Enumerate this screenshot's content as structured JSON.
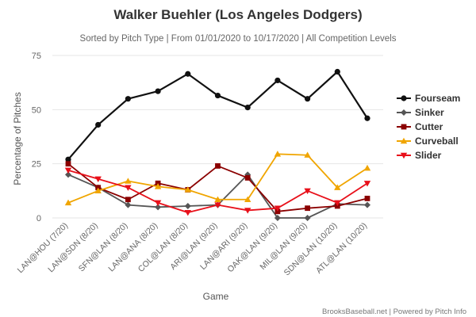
{
  "chart_data": {
    "type": "line",
    "title": "Walker Buehler (Los Angeles Dodgers)",
    "subtitle": "Sorted by Pitch Type | From 01/01/2020 to 10/17/2020 | All Competition Levels",
    "xlabel": "Game",
    "ylabel": "Percentage of Pitches",
    "ylim": [
      0,
      75
    ],
    "yticks": [
      0,
      25,
      50,
      75
    ],
    "categories": [
      "LAN@HOU (7/20)",
      "LAN@SDN (8/20)",
      "SFN@LAN (8/20)",
      "LAN@ANA (8/20)",
      "COL@LAN (8/20)",
      "ARI@LAN (9/20)",
      "LAN@ARI (9/20)",
      "OAK@LAN (9/20)",
      "MIL@LAN (9/20)",
      "SDN@LAN (10/20)",
      "ATL@LAN (10/20)"
    ],
    "series": [
      {
        "name": "Fourseam",
        "color": "#111111",
        "marker": "circle",
        "values": [
          27,
          43,
          55,
          58.5,
          66.5,
          56.5,
          51,
          63.5,
          55,
          67.5,
          46
        ]
      },
      {
        "name": "Sinker",
        "color": "#555555",
        "marker": "diamond",
        "values": [
          20,
          14,
          6,
          5,
          5.5,
          6,
          20,
          0,
          0,
          6.5,
          6
        ]
      },
      {
        "name": "Cutter",
        "color": "#8b0000",
        "marker": "square",
        "values": [
          25,
          14,
          8.5,
          16,
          13,
          24,
          18.5,
          3,
          4.5,
          5.5,
          9
        ]
      },
      {
        "name": "Curveball",
        "color": "#f0a500",
        "marker": "triangle-up",
        "values": [
          7,
          12.5,
          17,
          14.5,
          13,
          8.5,
          8.5,
          29.5,
          29,
          14,
          23
        ]
      },
      {
        "name": "Slider",
        "color": "#e8101a",
        "marker": "triangle-down",
        "values": [
          22,
          18,
          14,
          7,
          2.5,
          6,
          3.5,
          4.5,
          12.5,
          7,
          16
        ]
      }
    ],
    "legend": "right",
    "credits": "BrooksBaseball.net | Powered by Pitch Info"
  }
}
